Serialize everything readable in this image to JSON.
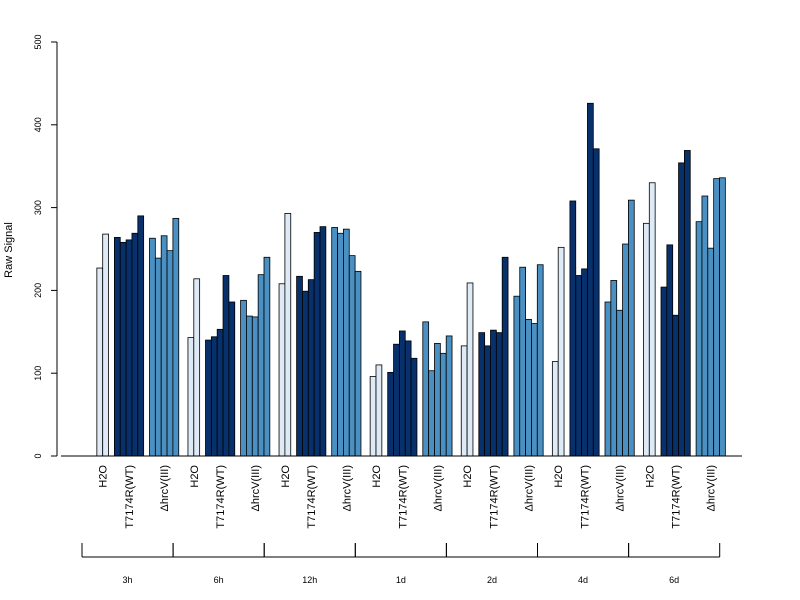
{
  "chart_data": {
    "type": "bar",
    "ylabel": "Raw Signal",
    "ylim": [
      0,
      500
    ],
    "yticks": [
      0,
      100,
      200,
      300,
      400,
      500
    ],
    "condition_labels": [
      "H2O",
      "T7174R(WT)",
      "ΔhrcV(III)"
    ],
    "timepoints": [
      "3h",
      "6h",
      "12h",
      "1d",
      "2d",
      "4d",
      "6d"
    ],
    "colors": {
      "H2O": "#deebf7",
      "T7174R(WT)": "#08306b",
      "ΔhrcV(III)": "#4a90c2"
    },
    "groups": [
      {
        "timepoint": "3h",
        "H2O": [
          227,
          268
        ],
        "T7174R(WT)": [
          264,
          258,
          261,
          269,
          290
        ],
        "ΔhrcV(III)": [
          263,
          239,
          266,
          248,
          287
        ]
      },
      {
        "timepoint": "6h",
        "H2O": [
          143,
          214
        ],
        "T7174R(WT)": [
          140,
          144,
          153,
          218,
          186
        ],
        "ΔhrcV(III)": [
          188,
          169,
          168,
          219,
          240
        ]
      },
      {
        "timepoint": "12h",
        "H2O": [
          208,
          293
        ],
        "T7174R(WT)": [
          217,
          199,
          213,
          270,
          277
        ],
        "ΔhrcV(III)": [
          276,
          269,
          274,
          242,
          223
        ]
      },
      {
        "timepoint": "1d",
        "H2O": [
          96,
          110
        ],
        "T7174R(WT)": [
          101,
          135,
          151,
          139,
          118
        ],
        "ΔhrcV(III)": [
          162,
          103,
          136,
          124,
          145
        ]
      },
      {
        "timepoint": "2d",
        "H2O": [
          133,
          209
        ],
        "T7174R(WT)": [
          149,
          133,
          152,
          149,
          240
        ],
        "ΔhrcV(III)": [
          193,
          228,
          165,
          160,
          231
        ]
      },
      {
        "timepoint": "4d",
        "H2O": [
          114,
          252
        ],
        "T7174R(WT)": [
          308,
          218,
          226,
          426,
          371
        ],
        "ΔhrcV(III)": [
          186,
          212,
          176,
          256,
          309
        ]
      },
      {
        "timepoint": "6d",
        "H2O": [
          281,
          330
        ],
        "T7174R(WT)": [
          204,
          255,
          170,
          354,
          369
        ],
        "ΔhrcV(III)": [
          283,
          314,
          251,
          335,
          336
        ]
      }
    ]
  }
}
